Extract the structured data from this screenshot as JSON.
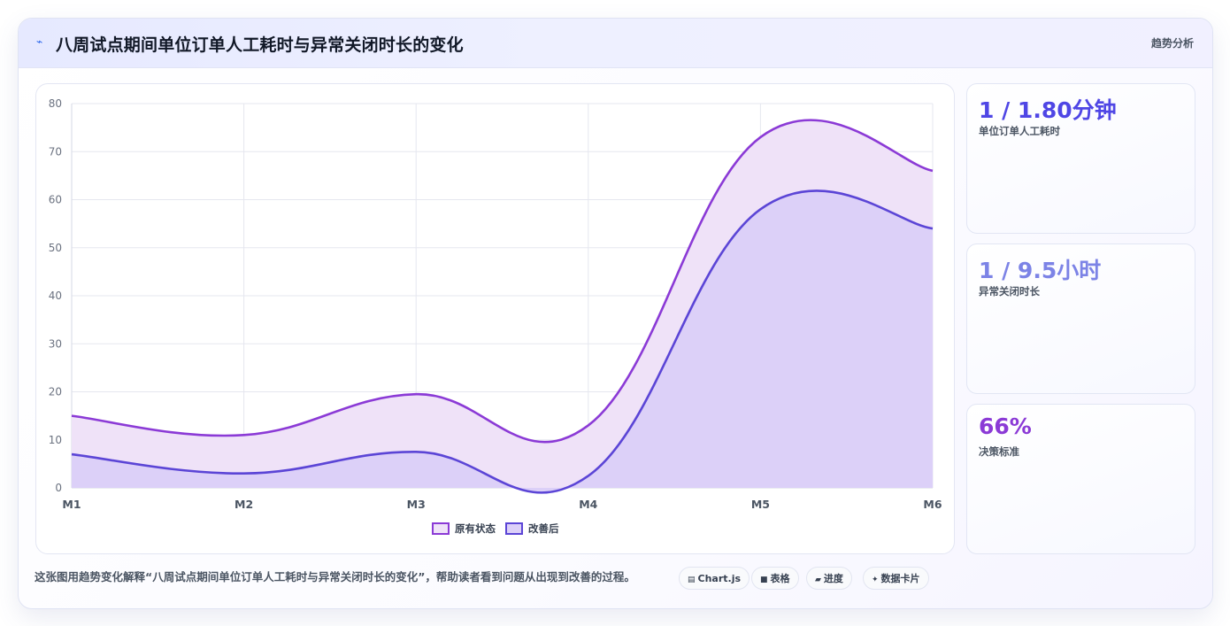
{
  "header": {
    "icon": "trend-line-icon",
    "icon_glyph": "⌁",
    "title": "八周试点期间单位订单人工耗时与异常关闭时长的变化",
    "tag": "趋势分析"
  },
  "kpis": [
    {
      "value": "1 / 1.80分钟",
      "label": "单位订单人工耗时",
      "color": "#4f46e5"
    },
    {
      "value": "1 / 9.5小时",
      "label": "异常关闭时长",
      "color": "#7c83e6"
    },
    {
      "value": "66%",
      "label": "决策标准",
      "color": "#8b3ad6"
    }
  ],
  "footer": {
    "caption": "这张图用趋势变化解释“八周试点期间单位订单人工耗时与异常关闭时长的变化”，帮助读者看到问题从出现到改善的过程。",
    "chips": [
      {
        "icon": "chart-icon",
        "glyph": "▤",
        "label": "Chart.js"
      },
      {
        "icon": "table-icon",
        "glyph": "■",
        "label": "表格"
      },
      {
        "icon": "progress-icon",
        "glyph": "▰",
        "label": "进度"
      },
      {
        "icon": "data-card-icon",
        "glyph": "✦",
        "label": "数据卡片"
      }
    ]
  },
  "chart_data": {
    "type": "area",
    "categories": [
      "M1",
      "M2",
      "M3",
      "M4",
      "M5",
      "M6"
    ],
    "ylim": [
      0,
      80
    ],
    "yticks": [
      0,
      10,
      20,
      30,
      40,
      50,
      60,
      70,
      80
    ],
    "grid": true,
    "legend_position": "bottom",
    "series": [
      {
        "name": "原有状态",
        "values": [
          15,
          11,
          19.5,
          13,
          73,
          66
        ],
        "stroke": "#8b3ad6",
        "fill": "#efe2f8"
      },
      {
        "name": "改善后",
        "values": [
          7,
          3,
          7.5,
          2.5,
          58,
          54
        ],
        "stroke": "#5b45d6",
        "fill": "#dcd0f8"
      }
    ]
  }
}
